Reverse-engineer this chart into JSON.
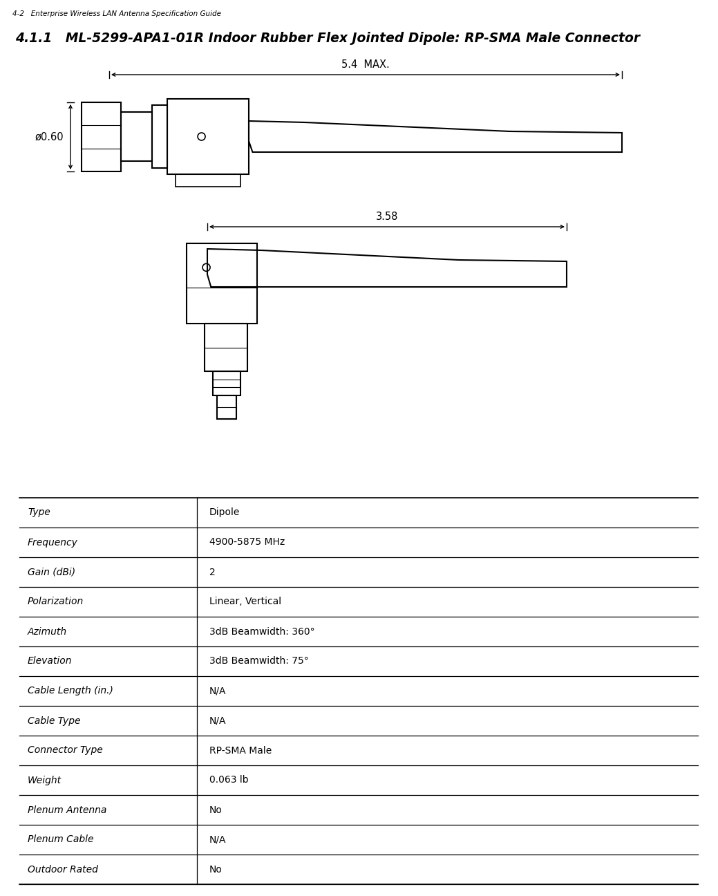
{
  "page_header": "4-2   Enterprise Wireless LAN Antenna Specification Guide",
  "section_title": "4.1.1   ML-5299-APA1-01R Indoor Rubber Flex Jointed Dipole: RP-SMA Male Connector",
  "dim_54_label": "5.4  MAX.",
  "dim_358_label": "3.58",
  "dim_diam_label": "ø0.60",
  "table_rows": [
    [
      "Type",
      "Dipole"
    ],
    [
      "Frequency",
      "4900-5875 MHz"
    ],
    [
      "Gain (dBi)",
      "2"
    ],
    [
      "Polarization",
      "Linear, Vertical"
    ],
    [
      "Azimuth",
      "3dB Beamwidth: 360°"
    ],
    [
      "Elevation",
      "3dB Beamwidth: 75°"
    ],
    [
      "Cable Length (in.)",
      "N/A"
    ],
    [
      "Cable Type",
      "N/A"
    ],
    [
      "Connector Type",
      "RP-SMA Male"
    ],
    [
      "Weight",
      "0.063 lb"
    ],
    [
      "Plenum Antenna",
      "No"
    ],
    [
      "Plenum Cable",
      "N/A"
    ],
    [
      "Outdoor Rated",
      "No"
    ]
  ],
  "bg_color": "#ffffff",
  "text_color": "#000000",
  "line_color": "#000000",
  "header_fontsize": 7.5,
  "title_fontsize": 13.5,
  "table_fontsize": 10.0,
  "dim_fontsize": 10.5
}
